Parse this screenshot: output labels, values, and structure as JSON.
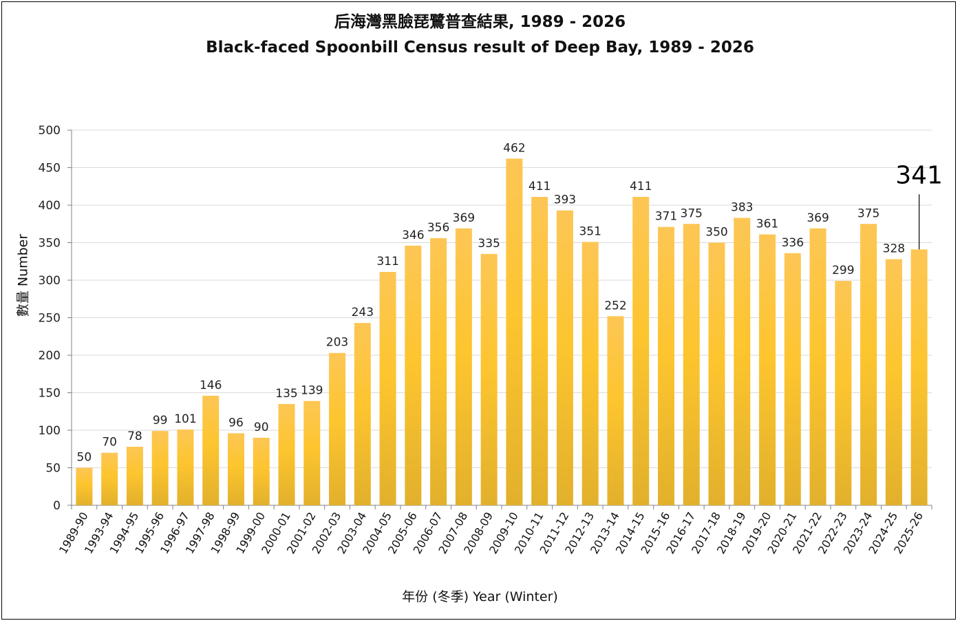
{
  "chart_data": {
    "type": "bar",
    "title": "后海灣黑臉琵鷺普查結果, 1989 - 2026",
    "subtitle": "Black-faced Spoonbill Census result of Deep Bay,  1989 - 2026",
    "xlabel": "年份 (冬季) Year (Winter)",
    "ylabel": "數量 Number",
    "ylim": [
      0,
      500
    ],
    "yticks": [
      0,
      50,
      100,
      150,
      200,
      250,
      300,
      350,
      400,
      450,
      500
    ],
    "grid": true,
    "categories": [
      "1989-90",
      "1993-94",
      "1994-95",
      "1995-96",
      "1996-97",
      "1997-98",
      "1998-99",
      "1999-00",
      "2000-01",
      "2001-02",
      "2002-03",
      "2003-04",
      "2004-05",
      "2005-06",
      "2006-07",
      "2007-08",
      "2008-09",
      "2009-10",
      "2010-11",
      "2011-12",
      "2012-13",
      "2013-14",
      "2014-15",
      "2015-16",
      "2016-17",
      "2017-18",
      "2018-19",
      "2019-20",
      "2020-21",
      "2021-22",
      "2022-23",
      "2023-24",
      "2024-25",
      "2025-26"
    ],
    "values": [
      50,
      70,
      78,
      99,
      101,
      146,
      96,
      90,
      135,
      139,
      203,
      243,
      311,
      346,
      356,
      369,
      335,
      462,
      411,
      393,
      351,
      252,
      411,
      371,
      375,
      350,
      383,
      361,
      336,
      369,
      299,
      375,
      328,
      341
    ],
    "highlight": {
      "category": "2025-26",
      "label": "341"
    },
    "colors": {
      "bar_top": "#FDC655",
      "bar_mid": "#FDC52E",
      "bar_bottom": "#E2B02C",
      "grid": "#D9D9D9",
      "axis": "#808080"
    }
  }
}
